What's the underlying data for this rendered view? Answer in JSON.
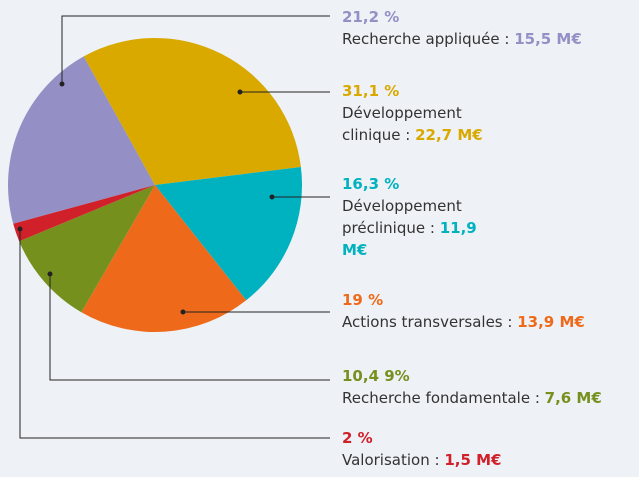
{
  "chart_data": {
    "type": "pie",
    "categories": [
      "Recherche appliquée",
      "Développement clinique",
      "Développement préclinique",
      "Actions transversales",
      "Recherche fondamentale",
      "Valorisation"
    ],
    "values": [
      21.2,
      31.1,
      16.3,
      19,
      10.4,
      2
    ],
    "value_labels": [
      "21,2 %",
      "31,1 %",
      "16,3 %",
      "19 %",
      "10,4 9%",
      "2 %"
    ],
    "amount_labels": [
      "15,5 M€",
      "22,7 M€",
      "11,9 M€",
      "13,9 M€",
      "7,6 M€",
      "1,5 M€"
    ],
    "colors": [
      "#9490c6",
      "#d9a900",
      "#00b2c0",
      "#ee6a1a",
      "#76901e",
      "#d0202a"
    ]
  }
}
